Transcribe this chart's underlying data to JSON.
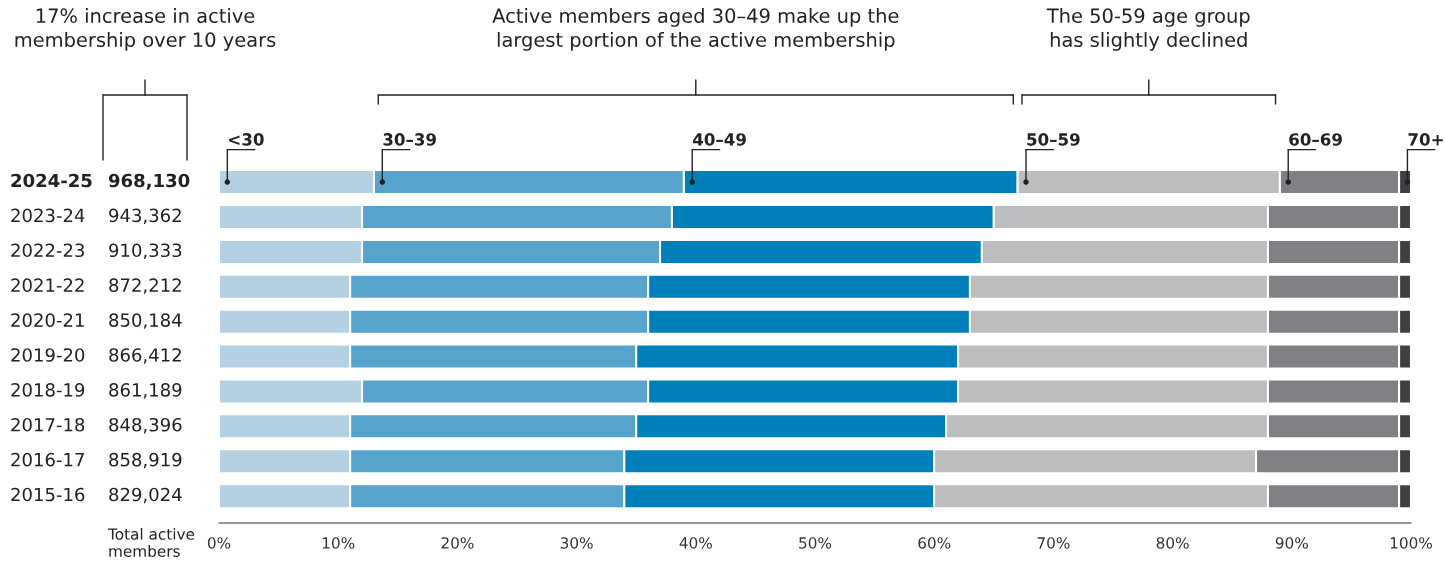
{
  "chart_data": {
    "type": "bar",
    "orientation": "horizontal",
    "stacked": true,
    "legend": false,
    "grid": false,
    "categories": [
      "2024-25",
      "2023-24",
      "2022-23",
      "2021-22",
      "2020-21",
      "2019-20",
      "2018-19",
      "2017-18",
      "2016-17",
      "2015-16"
    ],
    "series": [
      {
        "name": "<30",
        "color": "#b4d0e3",
        "values": [
          13,
          12,
          12,
          11,
          11,
          11,
          12,
          11,
          11,
          11
        ]
      },
      {
        "name": "30–39",
        "color": "#56a4cc",
        "values": [
          26,
          26,
          25,
          25,
          25,
          24,
          24,
          24,
          23,
          23
        ]
      },
      {
        "name": "40–49",
        "color": "#0080bb",
        "values": [
          28,
          27,
          27,
          27,
          27,
          27,
          26,
          26,
          26,
          26
        ]
      },
      {
        "name": "50–59",
        "color": "#bcbdbf",
        "values": [
          22,
          23,
          24,
          25,
          25,
          26,
          26,
          27,
          27,
          28
        ]
      },
      {
        "name": "60–69",
        "color": "#808184",
        "values": [
          10,
          11,
          11,
          11,
          11,
          11,
          11,
          11,
          12,
          11
        ]
      },
      {
        "name": "70+",
        "color": "#3f3f41",
        "values": [
          1,
          1,
          1,
          1,
          1,
          1,
          1,
          1,
          1,
          1
        ]
      }
    ],
    "xlim": [
      0,
      100
    ],
    "xticks": [
      {
        "value": 0,
        "label": "0%"
      },
      {
        "value": 10,
        "label": "10%"
      },
      {
        "value": 20,
        "label": "20%"
      },
      {
        "value": 30,
        "label": "30%"
      },
      {
        "value": 40,
        "label": "40%"
      },
      {
        "value": 50,
        "label": "50%"
      },
      {
        "value": 60,
        "label": "60%"
      },
      {
        "value": 70,
        "label": "70%"
      },
      {
        "value": 80,
        "label": "80%"
      },
      {
        "value": 90,
        "label": "90%"
      },
      {
        "value": 100,
        "label": "100%"
      }
    ],
    "annotations": [
      "17% increase in active\nmembership over 10 years",
      "Active members aged 30–49 make up the\nlargest portion of the active membership",
      "The 50-59 age group\nhas slightly declined",
      "Total active\nmembers",
      "968,130",
      "943,362",
      "910,333",
      "872,212",
      "850,184",
      "866,412",
      "861,189",
      "848,396",
      "858,919",
      "829,024"
    ]
  }
}
